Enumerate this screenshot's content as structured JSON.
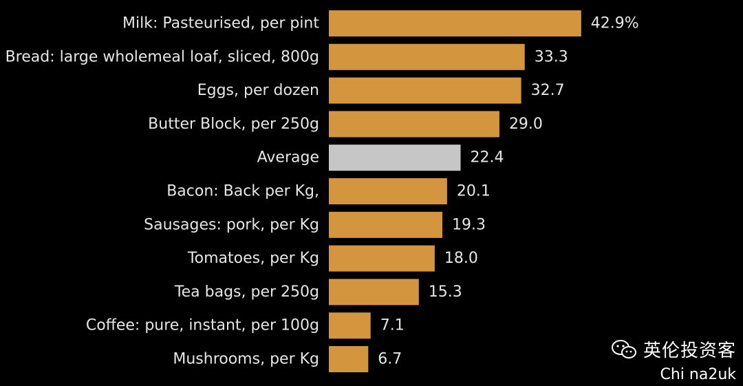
{
  "chart_data": {
    "type": "bar",
    "orientation": "horizontal",
    "categories": [
      "Milk: Pasteurised, per pint",
      "Bread: large wholemeal loaf, sliced, 800g",
      "Eggs, per dozen",
      "Butter Block, per 250g",
      "Average",
      "Bacon: Back per Kg,",
      "Sausages: pork, per Kg",
      "Tomatoes, per Kg",
      "Tea bags, per 250g",
      "Coffee: pure, instant, per 100g",
      "Mushrooms, per Kg"
    ],
    "values": [
      42.9,
      33.3,
      32.7,
      29.0,
      22.4,
      20.1,
      19.3,
      18.0,
      15.3,
      7.1,
      6.7
    ],
    "value_labels": [
      "42.9%",
      "33.3",
      "32.7",
      "29.0",
      "22.4",
      "20.1",
      "19.3",
      "18.0",
      "15.3",
      "7.1",
      "6.7"
    ],
    "highlight_category": "Average",
    "colors": {
      "bar": "#D4953F",
      "highlight": "#C6C6C6",
      "background": "#000000",
      "text": "#E6E6E6"
    },
    "xlim": [
      0,
      45
    ],
    "grid": false,
    "legend": "none"
  },
  "watermark": {
    "icon": "wechat-icon",
    "name": "英伦投资客",
    "sub": "Chi na2uk"
  }
}
